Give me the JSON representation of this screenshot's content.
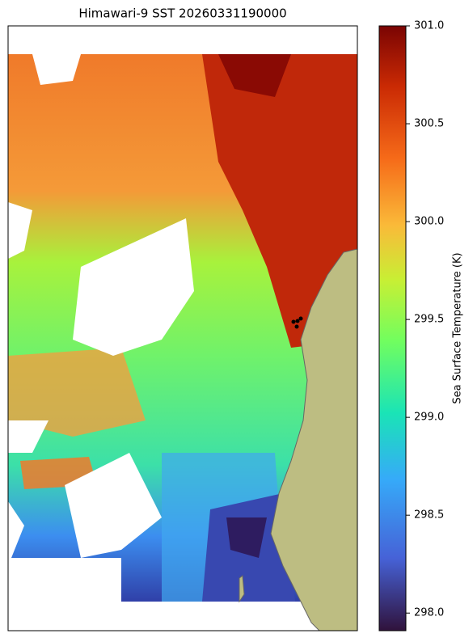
{
  "title": "Himawari-9 SST 20260331190000",
  "colorbar": {
    "label": "Sea Surface Temperature (K)",
    "lim": [
      297.91,
      301.0
    ],
    "ticks": [
      {
        "value": 298,
        "label": "298.0"
      },
      {
        "value": 298.5,
        "label": "298.5"
      },
      {
        "value": 299,
        "label": "299.0"
      },
      {
        "value": 299.5,
        "label": "299.5"
      },
      {
        "value": 300,
        "label": "300.0"
      },
      {
        "value": 300.5,
        "label": "300.5"
      },
      {
        "value": 301,
        "label": "301.0"
      }
    ]
  }
}
